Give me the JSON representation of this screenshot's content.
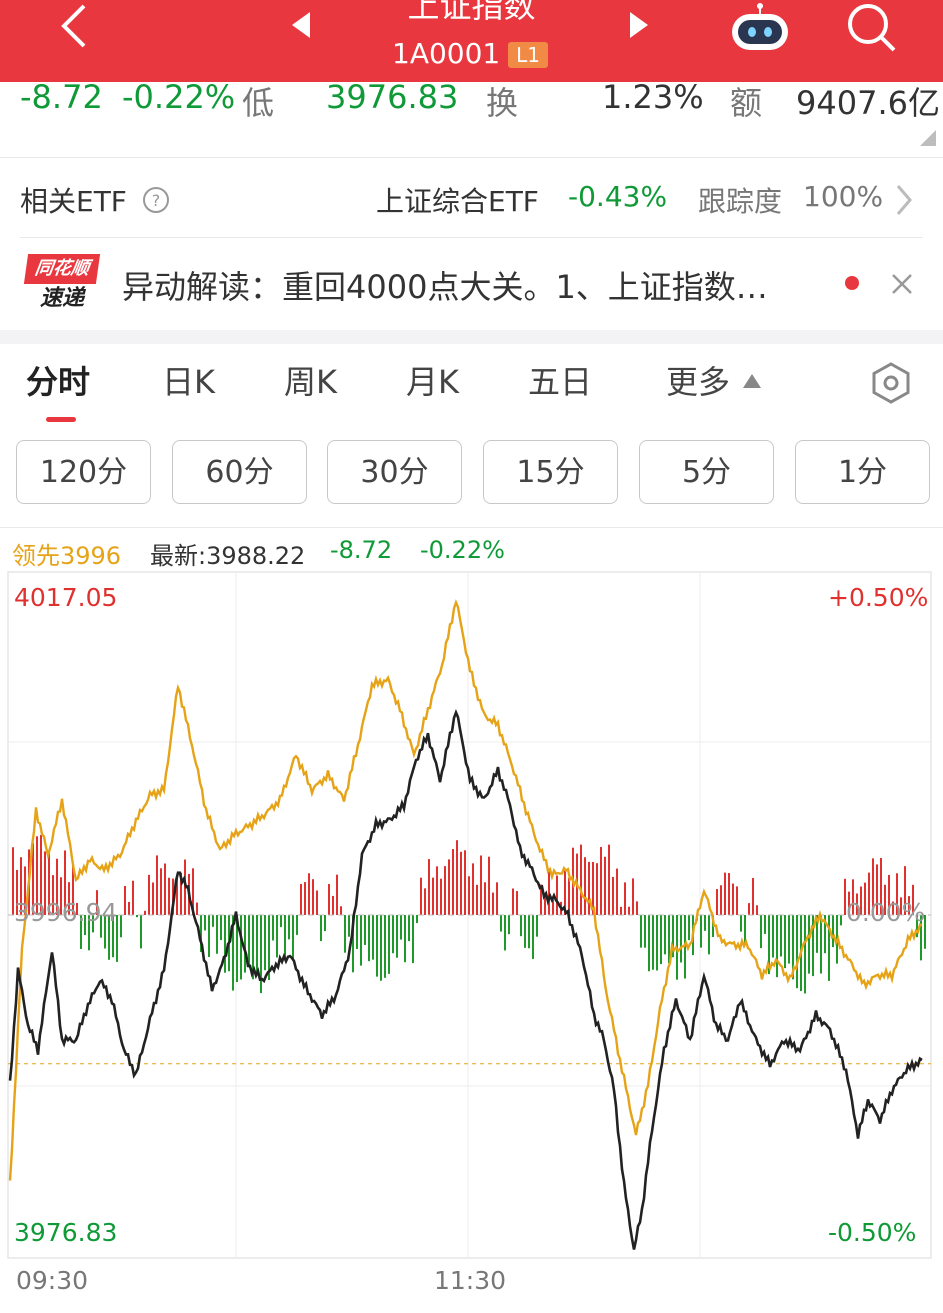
{
  "header": {
    "title": "上证指数",
    "code": "1A0001",
    "level_badge": "L1",
    "colors": {
      "bar": "#e8373e"
    }
  },
  "quote_row": {
    "change": "-8.72",
    "change_pct": "-0.22%",
    "low_label": "低",
    "low_value": "3976.83",
    "turnover_label": "换",
    "turnover_value": "1.23%",
    "amount_label": "额",
    "amount_value": "9407.6亿"
  },
  "etf_row": {
    "label": "相关ETF",
    "etf_name": "上证综合ETF",
    "etf_change": "-0.43%",
    "tracking_label": "跟踪度",
    "tracking_value": "100%"
  },
  "news_row": {
    "logo_line1": "同花顺",
    "logo_line2": "速递",
    "text": "异动解读：重回4000点大关。1、上证指数…"
  },
  "period_tabs": [
    {
      "label": "分时",
      "active": true
    },
    {
      "label": "日K"
    },
    {
      "label": "周K"
    },
    {
      "label": "月K"
    },
    {
      "label": "五日"
    },
    {
      "label": "更多"
    }
  ],
  "minute_buttons": [
    "120分",
    "60分",
    "30分",
    "15分",
    "5分",
    "1分"
  ],
  "legend": {
    "lead": "领先3996",
    "latest": "最新:3988.22",
    "change": "-8.72",
    "change_pct": "-0.22%"
  },
  "chart_data": {
    "type": "line",
    "y_max_label": "4017.05",
    "y_mid_label": "3996.94",
    "y_min_label": "3976.83",
    "pct_max_label": "+0.50%",
    "pct_mid_label": "0.00%",
    "pct_min_label": "-0.50%",
    "x_tick_labels": [
      "09:30",
      "11:30"
    ],
    "ylim": [
      3976.83,
      4017.05
    ],
    "prev_close": 3996.94,
    "last_price": 3988.22,
    "colors": {
      "price": "#222222",
      "lead": "#e6a317",
      "up": "#e0312f",
      "down": "#1f9a2a"
    }
  }
}
